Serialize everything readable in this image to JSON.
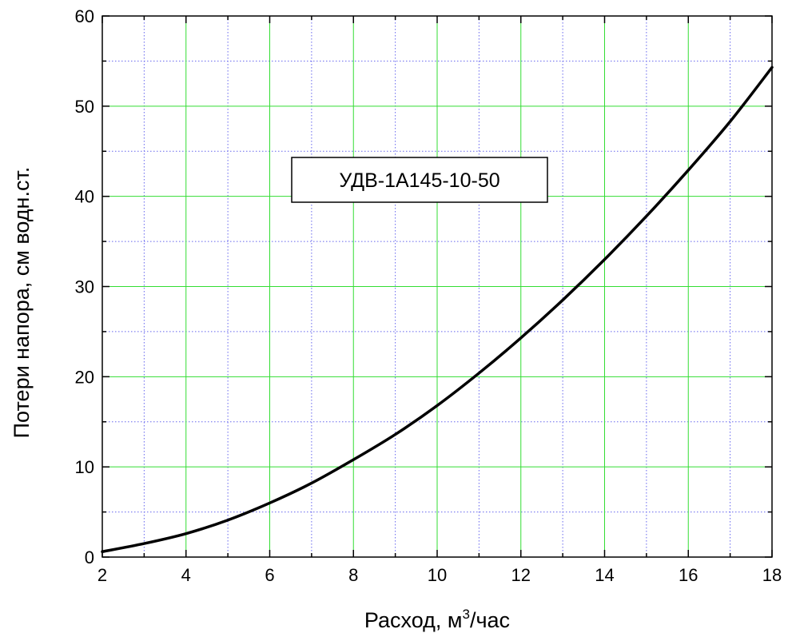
{
  "chart_data": {
    "type": "line",
    "xlabel": "Расход, м³/час",
    "xlabel_parts": {
      "base": "Расход, м",
      "sup": "3",
      "tail": "/час"
    },
    "ylabel": "Потери напора, см водн.ст.",
    "xlim": [
      2,
      18
    ],
    "ylim": [
      0,
      60
    ],
    "x_major_ticks": [
      2,
      4,
      6,
      8,
      10,
      12,
      14,
      16,
      18
    ],
    "y_major_ticks": [
      0,
      10,
      20,
      30,
      40,
      50,
      60
    ],
    "x_minor_ticks": [
      3,
      5,
      7,
      9,
      11,
      13,
      15,
      17
    ],
    "y_minor_ticks": [
      5,
      15,
      25,
      35,
      45,
      55
    ],
    "grid": true,
    "colors": {
      "major_grid": "#33dd33",
      "minor_grid": "#6666ee",
      "line": "#000000",
      "frame": "#000000"
    },
    "annotation": {
      "text": "УДВ-1А145-10-50"
    },
    "series": [
      {
        "x": [
          2,
          3,
          4,
          5,
          6,
          7,
          8,
          9,
          10,
          11,
          12,
          13,
          14,
          15,
          16,
          17,
          18
        ],
        "y": [
          0.6,
          1.5,
          2.6,
          4.1,
          6.0,
          8.2,
          10.8,
          13.6,
          16.8,
          20.4,
          24.3,
          28.5,
          33.0,
          37.8,
          42.9,
          48.3,
          54.3
        ]
      }
    ]
  }
}
